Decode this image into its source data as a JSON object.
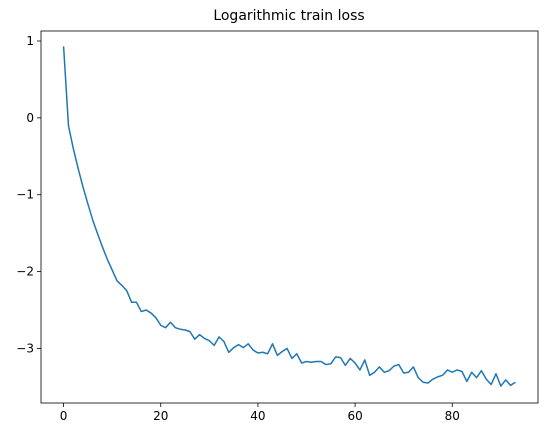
{
  "chart_data": {
    "type": "line",
    "title": "Logarithmic train loss",
    "xlabel": "",
    "ylabel": "",
    "xlim": [
      -4.65,
      97.65
    ],
    "ylim": [
      -3.71,
      1.13
    ],
    "xticks": [
      0,
      20,
      40,
      60,
      80
    ],
    "yticks": [
      1,
      0,
      -1,
      -2,
      -3
    ],
    "ytick_labels": [
      "1",
      "0",
      "−1",
      "−2",
      "−3"
    ],
    "grid": false,
    "line_color": "#1f77b4",
    "series": [
      {
        "x": [
          0,
          1,
          2,
          3,
          4,
          5,
          6,
          7,
          8,
          9,
          10,
          11,
          12,
          13,
          14,
          15,
          16,
          17,
          18,
          19,
          20,
          21,
          22,
          23,
          24,
          25,
          26,
          27,
          28,
          29,
          30,
          31,
          32,
          33,
          34,
          35,
          36,
          37,
          38,
          39,
          40,
          41,
          42,
          43,
          44,
          45,
          46,
          47,
          48,
          49,
          50,
          51,
          52,
          53,
          54,
          55,
          56,
          57,
          58,
          59,
          60,
          61,
          62,
          63,
          64,
          65,
          66,
          67,
          68,
          69,
          70,
          71,
          72,
          73,
          74,
          75,
          76,
          77,
          78,
          79,
          80,
          81,
          82,
          83,
          84,
          85,
          86,
          87,
          88,
          89,
          90,
          91,
          92,
          93
        ],
        "values": [
          0.93,
          -0.1,
          -0.4,
          -0.66,
          -0.9,
          -1.12,
          -1.33,
          -1.51,
          -1.68,
          -1.84,
          -1.98,
          -2.12,
          -2.18,
          -2.25,
          -2.4,
          -2.4,
          -2.52,
          -2.5,
          -2.54,
          -2.6,
          -2.7,
          -2.73,
          -2.66,
          -2.73,
          -2.75,
          -2.76,
          -2.78,
          -2.88,
          -2.82,
          -2.87,
          -2.9,
          -2.96,
          -2.85,
          -2.91,
          -3.05,
          -2.99,
          -2.95,
          -2.99,
          -2.94,
          -3.02,
          -3.06,
          -3.05,
          -3.07,
          -2.94,
          -3.09,
          -3.04,
          -3.0,
          -3.13,
          -3.07,
          -3.19,
          -3.17,
          -3.18,
          -3.17,
          -3.17,
          -3.21,
          -3.2,
          -3.11,
          -3.12,
          -3.22,
          -3.13,
          -3.19,
          -3.28,
          -3.15,
          -3.35,
          -3.31,
          -3.24,
          -3.31,
          -3.29,
          -3.23,
          -3.21,
          -3.32,
          -3.31,
          -3.24,
          -3.38,
          -3.44,
          -3.45,
          -3.4,
          -3.37,
          -3.35,
          -3.28,
          -3.31,
          -3.28,
          -3.3,
          -3.43,
          -3.31,
          -3.38,
          -3.29,
          -3.4,
          -3.47,
          -3.33,
          -3.49,
          -3.41,
          -3.48,
          -3.44
        ]
      }
    ]
  }
}
